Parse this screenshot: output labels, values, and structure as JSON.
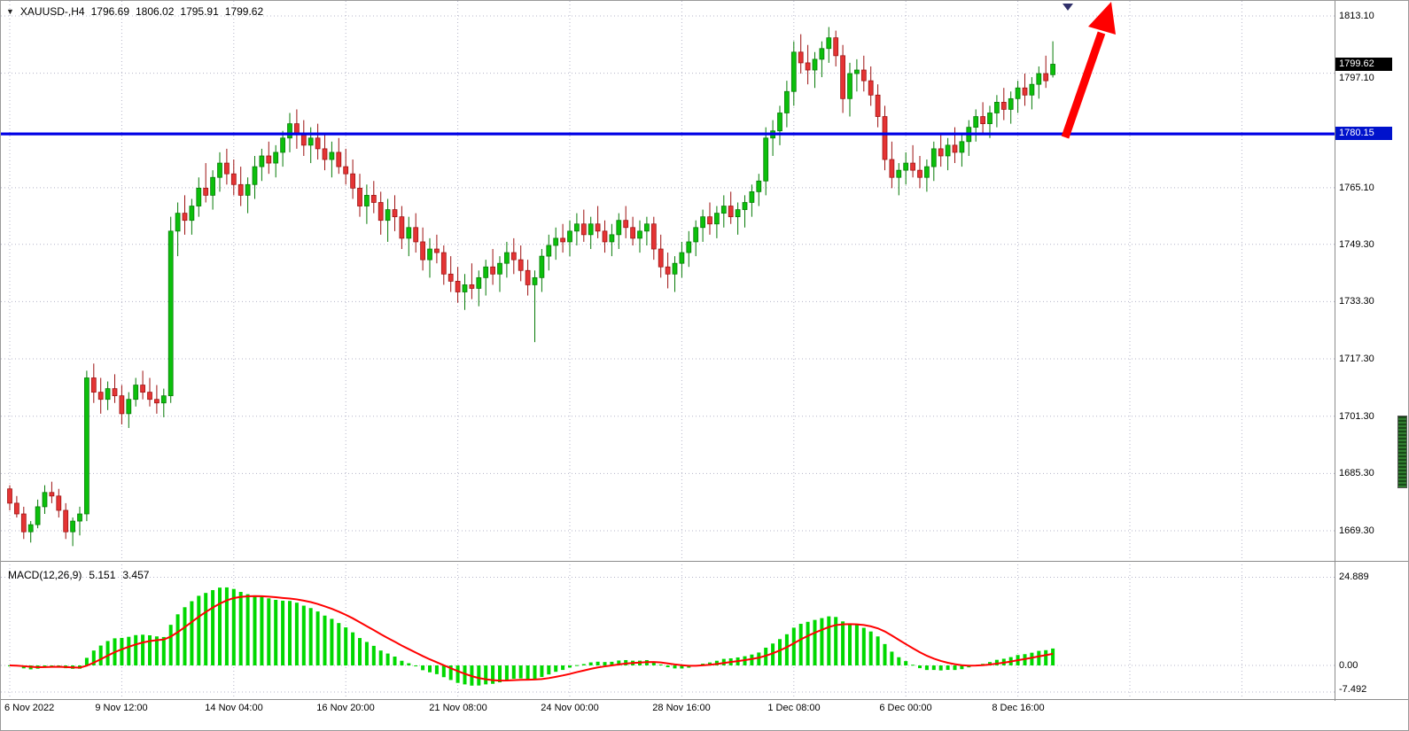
{
  "header": {
    "symbol_period": "XAUUSD-,H4",
    "open": "1796.69",
    "high": "1806.02",
    "low": "1795.91",
    "close": "1799.62"
  },
  "chart_data": {
    "type": "candlestick",
    "symbol": "XAUUSD-",
    "timeframe": "H4",
    "last_candle": {
      "open": 1796.69,
      "high": 1806.02,
      "low": 1795.91,
      "close": 1799.62
    },
    "price_axis": {
      "labels": [
        "1813.10",
        "1797.10",
        "1765.10",
        "1749.30",
        "1733.30",
        "1717.30",
        "1701.30",
        "1685.30",
        "1669.30"
      ],
      "current_price_badge": "1799.62",
      "hline_badge": "1780.15"
    },
    "time_axis": {
      "labels": [
        "6 Nov 2022",
        "9 Nov 12:00",
        "14 Nov 04:00",
        "16 Nov 20:00",
        "21 Nov 08:00",
        "24 Nov 00:00",
        "28 Nov 16:00",
        "1 Dec 08:00",
        "6 Dec 00:00",
        "8 Dec 16:00"
      ]
    },
    "macd": {
      "label": "MACD(12,26,9)",
      "macd_value": "5.151",
      "signal_value": "3.457",
      "axis_labels": [
        "24.889",
        "0.00",
        "-7.492"
      ]
    },
    "annotations": {
      "hline_price": "1780.15",
      "arrow": "red-up-trend-arrow"
    },
    "colors": {
      "grid": "#b4b4c8",
      "bull": "#0cbf0c",
      "bull_border": "#067a06",
      "bear": "#e43434",
      "bear_border": "#9c1010",
      "macd_hist": "#00d800",
      "macd_signal": "#ff0000",
      "hline": "#0000e6",
      "arrow": "#ff0000",
      "badge_black": "#000000",
      "badge_blue": "#0012cc"
    },
    "candles": [
      [
        1681,
        1682,
        1675,
        1677
      ],
      [
        1677,
        1679,
        1673,
        1674
      ],
      [
        1674,
        1676,
        1667,
        1669
      ],
      [
        1669,
        1672,
        1666,
        1671
      ],
      [
        1671,
        1678,
        1670,
        1676
      ],
      [
        1676,
        1682,
        1674,
        1680
      ],
      [
        1680,
        1683,
        1677,
        1679
      ],
      [
        1679,
        1681,
        1673,
        1675
      ],
      [
        1675,
        1677,
        1667,
        1669
      ],
      [
        1669,
        1673,
        1665,
        1672
      ],
      [
        1672,
        1676,
        1668,
        1674
      ],
      [
        1674,
        1714,
        1672,
        1712
      ],
      [
        1712,
        1716,
        1705,
        1708
      ],
      [
        1708,
        1712,
        1702,
        1706
      ],
      [
        1706,
        1711,
        1703,
        1709
      ],
      [
        1709,
        1713,
        1705,
        1707
      ],
      [
        1707,
        1710,
        1699,
        1702
      ],
      [
        1702,
        1708,
        1698,
        1706
      ],
      [
        1706,
        1712,
        1704,
        1710
      ],
      [
        1710,
        1714,
        1706,
        1708
      ],
      [
        1708,
        1712,
        1704,
        1706
      ],
      [
        1706,
        1710,
        1702,
        1705
      ],
      [
        1705,
        1709,
        1701,
        1707
      ],
      [
        1707,
        1757,
        1705,
        1753
      ],
      [
        1753,
        1761,
        1746,
        1758
      ],
      [
        1758,
        1763,
        1752,
        1756
      ],
      [
        1756,
        1762,
        1752,
        1760
      ],
      [
        1760,
        1768,
        1757,
        1765
      ],
      [
        1765,
        1772,
        1761,
        1763
      ],
      [
        1763,
        1770,
        1759,
        1768
      ],
      [
        1768,
        1775,
        1764,
        1772
      ],
      [
        1772,
        1776,
        1766,
        1769
      ],
      [
        1769,
        1773,
        1763,
        1766
      ],
      [
        1766,
        1771,
        1760,
        1763
      ],
      [
        1763,
        1768,
        1758,
        1766
      ],
      [
        1766,
        1774,
        1762,
        1771
      ],
      [
        1771,
        1776,
        1767,
        1774
      ],
      [
        1774,
        1778,
        1769,
        1772
      ],
      [
        1772,
        1777,
        1768,
        1775
      ],
      [
        1775,
        1781,
        1771,
        1779
      ],
      [
        1779,
        1786,
        1775,
        1783
      ],
      [
        1783,
        1787,
        1776,
        1780
      ],
      [
        1780,
        1784,
        1774,
        1777
      ],
      [
        1777,
        1782,
        1772,
        1779
      ],
      [
        1779,
        1783,
        1773,
        1776
      ],
      [
        1776,
        1780,
        1770,
        1773
      ],
      [
        1773,
        1778,
        1768,
        1775
      ],
      [
        1775,
        1779,
        1769,
        1771
      ],
      [
        1771,
        1776,
        1766,
        1769
      ],
      [
        1769,
        1773,
        1762,
        1765
      ],
      [
        1765,
        1769,
        1757,
        1760
      ],
      [
        1760,
        1766,
        1755,
        1763
      ],
      [
        1763,
        1767,
        1758,
        1761
      ],
      [
        1761,
        1764,
        1752,
        1756
      ],
      [
        1756,
        1762,
        1750,
        1759
      ],
      [
        1759,
        1763,
        1753,
        1757
      ],
      [
        1757,
        1760,
        1748,
        1751
      ],
      [
        1751,
        1757,
        1746,
        1754
      ],
      [
        1754,
        1758,
        1747,
        1750
      ],
      [
        1750,
        1754,
        1742,
        1745
      ],
      [
        1745,
        1751,
        1740,
        1748
      ],
      [
        1748,
        1752,
        1744,
        1747
      ],
      [
        1747,
        1749,
        1738,
        1741
      ],
      [
        1741,
        1746,
        1736,
        1739
      ],
      [
        1739,
        1743,
        1733,
        1736
      ],
      [
        1736,
        1741,
        1731,
        1738
      ],
      [
        1738,
        1744,
        1734,
        1737
      ],
      [
        1737,
        1742,
        1732,
        1740
      ],
      [
        1740,
        1745,
        1735,
        1743
      ],
      [
        1743,
        1748,
        1738,
        1741
      ],
      [
        1741,
        1746,
        1736,
        1744
      ],
      [
        1744,
        1750,
        1740,
        1747
      ],
      [
        1747,
        1751,
        1741,
        1745
      ],
      [
        1745,
        1749,
        1739,
        1742
      ],
      [
        1742,
        1745,
        1735,
        1738
      ],
      [
        1738,
        1742,
        1722,
        1740
      ],
      [
        1740,
        1748,
        1736,
        1746
      ],
      [
        1746,
        1752,
        1742,
        1749
      ],
      [
        1749,
        1754,
        1745,
        1751
      ],
      [
        1751,
        1755,
        1747,
        1750
      ],
      [
        1750,
        1756,
        1746,
        1753
      ],
      [
        1753,
        1758,
        1749,
        1755
      ],
      [
        1755,
        1759,
        1750,
        1752
      ],
      [
        1752,
        1757,
        1748,
        1755
      ],
      [
        1755,
        1760,
        1751,
        1753
      ],
      [
        1753,
        1756,
        1747,
        1750
      ],
      [
        1750,
        1755,
        1746,
        1752
      ],
      [
        1752,
        1758,
        1748,
        1756
      ],
      [
        1756,
        1760,
        1751,
        1754
      ],
      [
        1754,
        1757,
        1749,
        1751
      ],
      [
        1751,
        1756,
        1747,
        1753
      ],
      [
        1753,
        1757,
        1749,
        1755
      ],
      [
        1755,
        1757,
        1745,
        1748
      ],
      [
        1748,
        1752,
        1740,
        1743
      ],
      [
        1743,
        1747,
        1737,
        1741
      ],
      [
        1741,
        1746,
        1736,
        1744
      ],
      [
        1744,
        1750,
        1740,
        1747
      ],
      [
        1747,
        1753,
        1743,
        1750
      ],
      [
        1750,
        1756,
        1746,
        1754
      ],
      [
        1754,
        1759,
        1750,
        1757
      ],
      [
        1757,
        1761,
        1752,
        1755
      ],
      [
        1755,
        1760,
        1751,
        1758
      ],
      [
        1758,
        1763,
        1754,
        1760
      ],
      [
        1760,
        1764,
        1755,
        1757
      ],
      [
        1757,
        1761,
        1752,
        1759
      ],
      [
        1759,
        1763,
        1754,
        1761
      ],
      [
        1761,
        1766,
        1757,
        1764
      ],
      [
        1764,
        1769,
        1760,
        1767
      ],
      [
        1767,
        1782,
        1763,
        1779
      ],
      [
        1779,
        1784,
        1774,
        1781
      ],
      [
        1781,
        1788,
        1777,
        1786
      ],
      [
        1786,
        1795,
        1782,
        1792
      ],
      [
        1792,
        1806,
        1788,
        1803
      ],
      [
        1803,
        1808,
        1797,
        1800
      ],
      [
        1800,
        1805,
        1794,
        1798
      ],
      [
        1798,
        1803,
        1793,
        1801
      ],
      [
        1801,
        1806,
        1796,
        1804
      ],
      [
        1804,
        1810,
        1800,
        1807
      ],
      [
        1807,
        1809,
        1799,
        1802
      ],
      [
        1802,
        1805,
        1786,
        1790
      ],
      [
        1790,
        1800,
        1785,
        1797
      ],
      [
        1797,
        1801,
        1792,
        1798
      ],
      [
        1798,
        1802,
        1792,
        1795
      ],
      [
        1795,
        1799,
        1788,
        1791
      ],
      [
        1791,
        1794,
        1782,
        1785
      ],
      [
        1785,
        1788,
        1770,
        1773
      ],
      [
        1773,
        1778,
        1765,
        1768
      ],
      [
        1768,
        1772,
        1763,
        1770
      ],
      [
        1770,
        1775,
        1766,
        1772
      ],
      [
        1772,
        1777,
        1768,
        1770
      ],
      [
        1770,
        1774,
        1765,
        1768
      ],
      [
        1768,
        1773,
        1764,
        1771
      ],
      [
        1771,
        1778,
        1767,
        1776
      ],
      [
        1776,
        1780,
        1771,
        1774
      ],
      [
        1774,
        1779,
        1770,
        1777
      ],
      [
        1777,
        1782,
        1772,
        1775
      ],
      [
        1775,
        1780,
        1771,
        1778
      ],
      [
        1778,
        1784,
        1774,
        1782
      ],
      [
        1782,
        1787,
        1778,
        1785
      ],
      [
        1785,
        1789,
        1780,
        1783
      ],
      [
        1783,
        1788,
        1779,
        1786
      ],
      [
        1786,
        1791,
        1782,
        1789
      ],
      [
        1789,
        1793,
        1784,
        1787
      ],
      [
        1787,
        1792,
        1783,
        1790
      ],
      [
        1790,
        1795,
        1786,
        1793
      ],
      [
        1793,
        1797,
        1788,
        1791
      ],
      [
        1791,
        1796,
        1787,
        1794
      ],
      [
        1794,
        1799,
        1790,
        1797
      ],
      [
        1797,
        1802,
        1793,
        1795
      ],
      [
        1796.69,
        1806.02,
        1795.91,
        1799.62
      ]
    ]
  }
}
